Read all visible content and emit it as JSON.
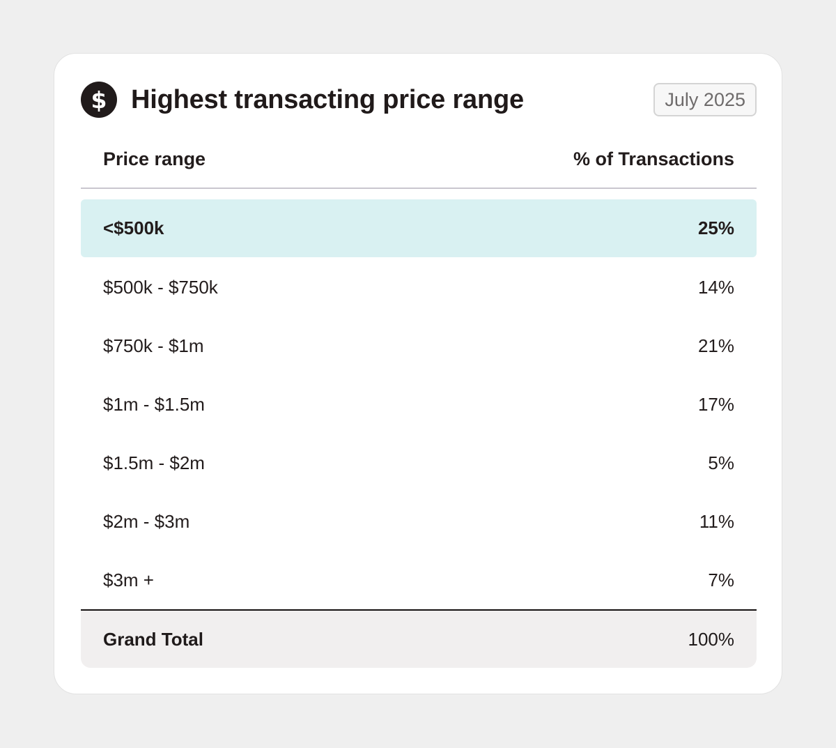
{
  "card": {
    "title": "Highest transacting price range",
    "icon": "dollar-icon",
    "icon_glyph": "$",
    "date_badge": "July 2025"
  },
  "table": {
    "columns": [
      "Price range",
      "% of Transactions"
    ],
    "rows": [
      {
        "range": "<$500k",
        "percent": "25%",
        "highlighted": true
      },
      {
        "range": "$500k - $750k",
        "percent": "14%"
      },
      {
        "range": "$750k - $1m",
        "percent": "21%"
      },
      {
        "range": "$1m - $1.5m",
        "percent": "17%"
      },
      {
        "range": "$1.5m - $2m",
        "percent": "5%"
      },
      {
        "range": "$2m - $3m",
        "percent": "11%"
      },
      {
        "range": "$3m +",
        "percent": "7%"
      }
    ],
    "total": {
      "label": "Grand Total",
      "percent": "100%"
    }
  },
  "colors": {
    "highlight_row": "#d9f1f2",
    "total_row": "#f1efef",
    "icon_bg": "#211b1b"
  }
}
